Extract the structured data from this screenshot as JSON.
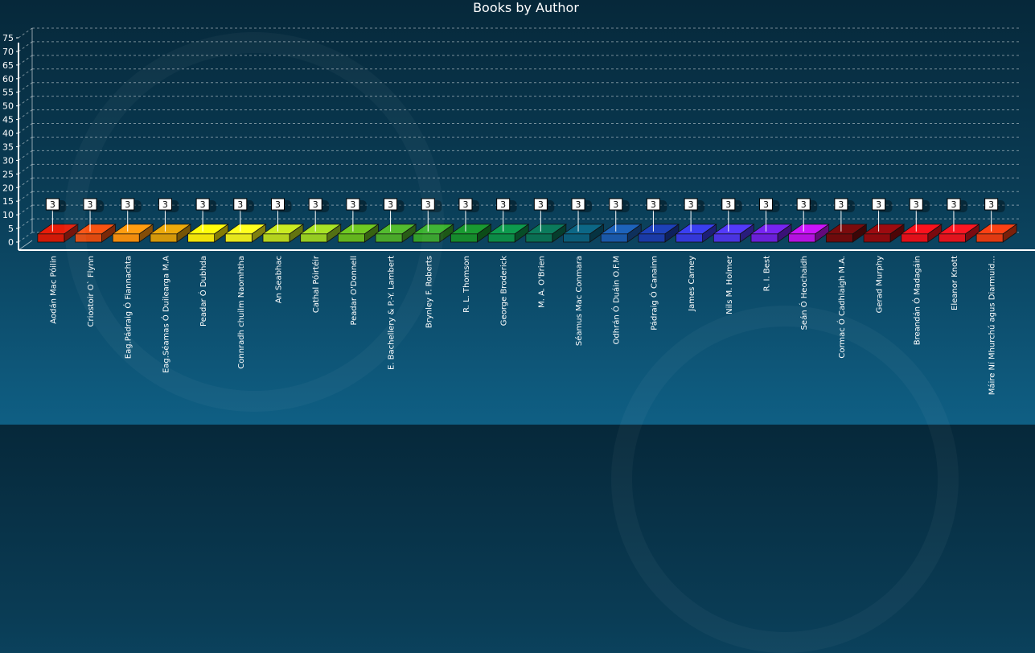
{
  "chart_data": {
    "type": "bar",
    "title": "Books by Author",
    "xlabel": "",
    "ylabel": "",
    "ylim": [
      0,
      75
    ],
    "yticks": [
      0,
      5,
      10,
      15,
      20,
      25,
      30,
      35,
      40,
      45,
      50,
      55,
      60,
      65,
      70,
      75
    ],
    "grid": true,
    "legend": "none",
    "categories": [
      "Aodán Mac Póilin",
      "Criostoir O` Flynn",
      "Eag.Pádraig Ó Fiannachta",
      "Eag.Séamas Ó Duilearga M.A",
      "Peadar Ó Dubhda",
      "Connradh chuilm Naomhtha",
      "An Seabhac",
      "Cathal Póirtéir",
      "Peadar O'Donnell",
      "E. Bachellery & P.-Y. Lambert",
      "Brynley F. Roberts",
      "R. L. Thomson",
      "George Broderick",
      "M. A. O'Brien",
      "Séamus Mac Conmara",
      "Odhrán Ó Duáin O.F.M",
      "Pádraig Ó Canainn",
      "James Carney",
      "Nils M. Holmer",
      "R. I. Best",
      "Seán Ó Heochaidh",
      "Cormac Ó Cadhlaigh M.A.",
      "Gerad Murphy",
      "Breandán Ó Madagáin",
      "Eleanor Knott",
      "Máire Ní Mhurchú agus Diarmuid..."
    ],
    "values": [
      3,
      3,
      3,
      3,
      3,
      3,
      3,
      3,
      3,
      3,
      3,
      3,
      3,
      3,
      3,
      3,
      3,
      3,
      3,
      3,
      3,
      3,
      3,
      3,
      3,
      3
    ],
    "colors": [
      "#d01a08",
      "#de4a10",
      "#f08c0e",
      "#d4980a",
      "#f0e20a",
      "#e6e61c",
      "#b4d21e",
      "#96cc22",
      "#64b41e",
      "#4aa82a",
      "#34a02a",
      "#168a2c",
      "#0c8a46",
      "#0a6e52",
      "#0b5c78",
      "#1a58a8",
      "#1a3aa6",
      "#3438d8",
      "#4a34e0",
      "#6a20d8",
      "#b412e0",
      "#6e0a0c",
      "#8c0a0e",
      "#e0101a",
      "#e0141e",
      "#e03a12"
    ]
  }
}
